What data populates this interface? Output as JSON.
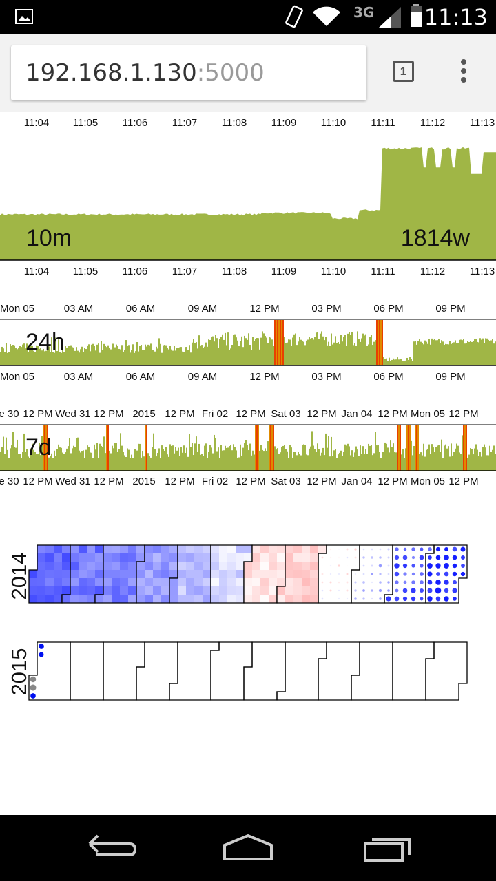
{
  "status_bar": {
    "network": "3G",
    "time": "11:13",
    "icons": [
      "image-icon",
      "rotate-phone-icon",
      "wifi-icon",
      "signal-icon",
      "battery-icon"
    ]
  },
  "browser": {
    "url_host": "192.168.1.130",
    "url_port": ":5000",
    "tab_count": "1"
  },
  "colors": {
    "power": "#a0b646",
    "spike_orange": "#e08a00",
    "spike_red": "#e84000",
    "cold": "#0010f0",
    "warm": "#e05050"
  },
  "charts": {
    "chart_10m": {
      "window_label": "10m",
      "current_value": "1814w",
      "ticks": [
        "11:04",
        "11:05",
        "11:06",
        "11:07",
        "11:08",
        "11:09",
        "11:10",
        "11:11",
        "11:12",
        "11:13"
      ]
    },
    "chart_24h": {
      "window_label": "24h",
      "ticks": [
        "Mon 05",
        "03 AM",
        "06 AM",
        "09 AM",
        "12 PM",
        "03 PM",
        "06 PM",
        "09 PM"
      ]
    },
    "chart_7d": {
      "window_label": "7d",
      "ticks": [
        "e 30",
        "12 PM",
        "Wed 31",
        "12 PM",
        "2015",
        "12 PM",
        "Fri 02",
        "12 PM",
        "Sat 03",
        "12 PM",
        "Jan 04",
        "12 PM",
        "Mon 05",
        "12 PM"
      ]
    },
    "calendar": {
      "years": [
        "2014",
        "2015"
      ]
    }
  },
  "chart_data": [
    {
      "type": "area",
      "window": "10m",
      "x": [
        "11:04",
        "11:05",
        "11:06",
        "11:07",
        "11:08",
        "11:09",
        "11:10",
        "11:11",
        "11:11",
        "11:12",
        "11:12",
        "11:13"
      ],
      "y": [
        760,
        770,
        775,
        770,
        765,
        790,
        700,
        850,
        1900,
        1900,
        1400,
        1814
      ],
      "ylim": [
        0,
        2200
      ]
    },
    {
      "type": "area",
      "window": "24h",
      "x": [
        "Mon 05",
        "03 AM",
        "06 AM",
        "09 AM",
        "12 PM",
        "03 PM",
        "06 PM",
        "09 PM"
      ],
      "y": [
        0.3,
        0.25,
        0.28,
        0.35,
        0.5,
        0.45,
        0.15,
        0.45
      ]
    },
    {
      "type": "area",
      "window": "7d",
      "x": [
        "e 30",
        "Wed 31",
        "2015",
        "Fri 02",
        "Sat 03",
        "Jan 04",
        "Mon 05"
      ],
      "y": [
        0.35,
        0.35,
        0.35,
        0.35,
        0.35,
        0.3,
        0.3
      ]
    },
    {
      "type": "heatmap",
      "title": "2014",
      "months": 12,
      "month_tint": [
        -0.65,
        -0.6,
        -0.55,
        -0.45,
        -0.3,
        -0.15,
        0.15,
        0.25,
        0.05,
        -0.2,
        -0.55,
        -0.75
      ]
    },
    {
      "type": "heatmap",
      "title": "2015",
      "months": 12,
      "filled_days": 5
    }
  ]
}
